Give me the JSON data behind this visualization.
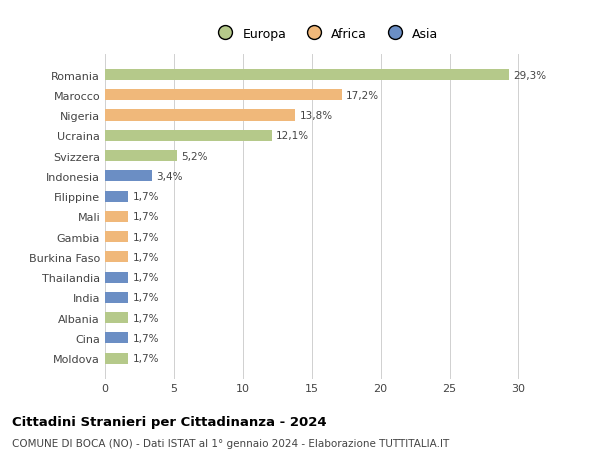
{
  "categories": [
    "Moldova",
    "Cina",
    "Albania",
    "India",
    "Thailandia",
    "Burkina Faso",
    "Gambia",
    "Mali",
    "Filippine",
    "Indonesia",
    "Svizzera",
    "Ucraina",
    "Nigeria",
    "Marocco",
    "Romania"
  ],
  "values": [
    1.7,
    1.7,
    1.7,
    1.7,
    1.7,
    1.7,
    1.7,
    1.7,
    1.7,
    3.4,
    5.2,
    12.1,
    13.8,
    17.2,
    29.3
  ],
  "labels": [
    "1,7%",
    "1,7%",
    "1,7%",
    "1,7%",
    "1,7%",
    "1,7%",
    "1,7%",
    "1,7%",
    "1,7%",
    "3,4%",
    "5,2%",
    "12,1%",
    "13,8%",
    "17,2%",
    "29,3%"
  ],
  "colors": [
    "#b5c98a",
    "#6b8ec4",
    "#b5c98a",
    "#6b8ec4",
    "#6b8ec4",
    "#f0b87a",
    "#f0b87a",
    "#f0b87a",
    "#6b8ec4",
    "#6b8ec4",
    "#b5c98a",
    "#b5c98a",
    "#f0b87a",
    "#f0b87a",
    "#b5c98a"
  ],
  "legend_labels": [
    "Europa",
    "Africa",
    "Asia"
  ],
  "legend_colors": [
    "#b5c98a",
    "#f0b87a",
    "#6b8ec4"
  ],
  "title": "Cittadini Stranieri per Cittadinanza - 2024",
  "subtitle": "COMUNE DI BOCA (NO) - Dati ISTAT al 1° gennaio 2024 - Elaborazione TUTTITALIA.IT",
  "xlim": [
    0,
    32
  ],
  "xticks": [
    0,
    5,
    10,
    15,
    20,
    25,
    30
  ],
  "bg_color": "#ffffff",
  "grid_color": "#d0d0d0",
  "bar_height": 0.55
}
